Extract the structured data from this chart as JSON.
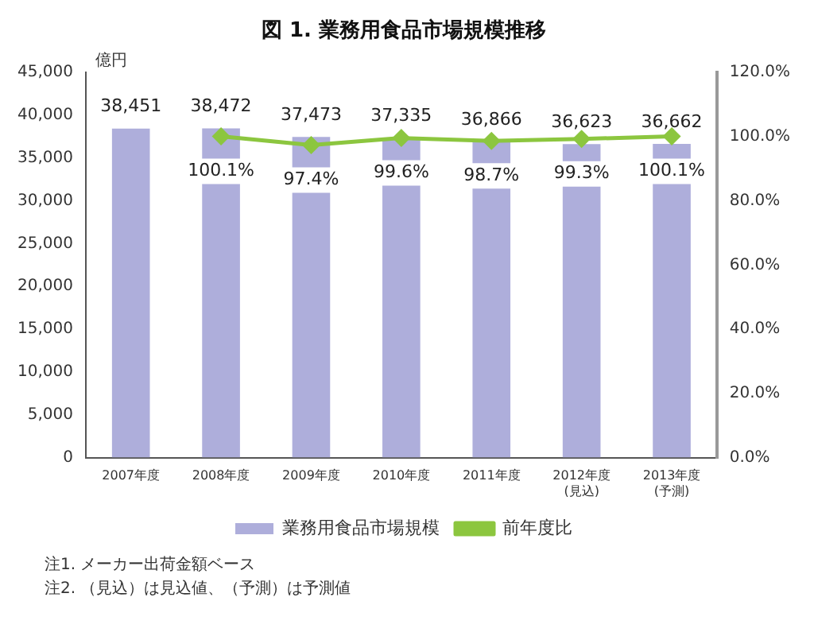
{
  "chart_data": {
    "type": "bar",
    "title": "図 1. 業務用食品市場規模推移",
    "ylabel": "億円",
    "categories": [
      "2007年度",
      "2008年度",
      "2009年度",
      "2010年度",
      "2011年度",
      "2012年度\n(見込)",
      "2013年度\n(予測)"
    ],
    "series": [
      {
        "name": "業務用食品市場規模",
        "color": "#aeaedb",
        "values": [
          38451,
          38472,
          37473,
          37335,
          36866,
          36623,
          36662
        ],
        "value_labels": [
          "38,451",
          "38,472",
          "37,473",
          "37,335",
          "36,866",
          "36,623",
          "36,662"
        ]
      },
      {
        "name": "前年度比",
        "type": "line",
        "axis": "y2",
        "color": "#8cc63f",
        "marker": "diamond",
        "values": [
          null,
          100.1,
          97.4,
          99.6,
          98.7,
          99.3,
          100.1
        ],
        "value_labels": [
          null,
          "100.1%",
          "97.4%",
          "99.6%",
          "98.7%",
          "99.3%",
          "100.1%"
        ]
      }
    ],
    "ylim": [
      0,
      45000
    ],
    "yticks": [
      {
        "value": 0,
        "label": "0"
      },
      {
        "value": 5000,
        "label": "5,000"
      },
      {
        "value": 10000,
        "label": "10,000"
      },
      {
        "value": 15000,
        "label": "15,000"
      },
      {
        "value": 20000,
        "label": "20,000"
      },
      {
        "value": 25000,
        "label": "25,000"
      },
      {
        "value": 30000,
        "label": "30,000"
      },
      {
        "value": 35000,
        "label": "35,000"
      },
      {
        "value": 40000,
        "label": "40,000"
      },
      {
        "value": 45000,
        "label": "45,000"
      }
    ],
    "y2lim": [
      0,
      120
    ],
    "y2ticks": [
      {
        "value": 0,
        "label": "0.0%"
      },
      {
        "value": 20,
        "label": "20.0%"
      },
      {
        "value": 40,
        "label": "40.0%"
      },
      {
        "value": 60,
        "label": "60.0%"
      },
      {
        "value": 80,
        "label": "80.0%"
      },
      {
        "value": 100,
        "label": "100.0%"
      },
      {
        "value": 120,
        "label": "120.0%"
      }
    ],
    "grid": false,
    "legend": "bottom",
    "annotations": [
      "注1. メーカー出荷金額ベース",
      "注2. （見込）は見込値、（予測）は予測値"
    ]
  }
}
